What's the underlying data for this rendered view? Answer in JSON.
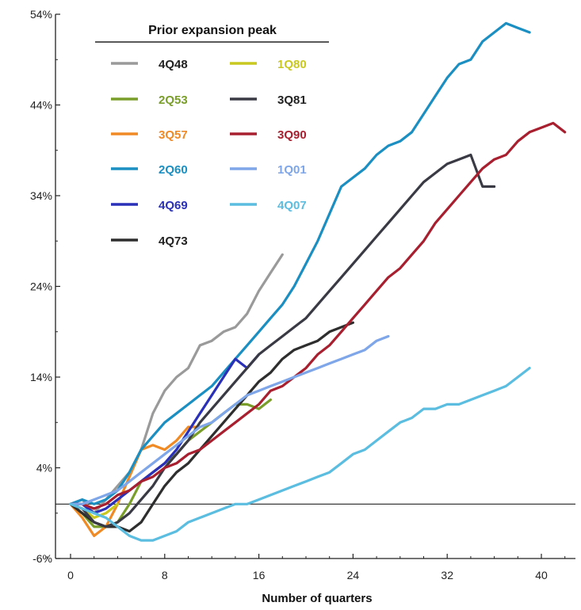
{
  "chart_data": {
    "type": "line",
    "title": "",
    "xlabel": "Number of quarters",
    "ylabel": "",
    "xlim": [
      -2,
      43
    ],
    "ylim": [
      -6,
      54
    ],
    "xticks": [
      0,
      8,
      16,
      24,
      32,
      40
    ],
    "yticks": [
      -6,
      4,
      14,
      24,
      34,
      44,
      54
    ],
    "ytick_labels": [
      "-6%",
      "4%",
      "14%",
      "24%",
      "34%",
      "44%",
      "54%"
    ],
    "xtick_labels": [
      "0",
      "8",
      "16",
      "24",
      "32",
      "40"
    ],
    "zero_line": true,
    "grid": false,
    "legend": {
      "title": "Prior expansion peak",
      "placement": "top-left"
    },
    "series": [
      {
        "name": "4Q48",
        "color": "#9a9a9a",
        "x": [
          0,
          1,
          2,
          3,
          4,
          5,
          6,
          7,
          8,
          9,
          10,
          11,
          12,
          13,
          14,
          15,
          16,
          17,
          18
        ],
        "y": [
          0,
          0.5,
          -1,
          0.5,
          2,
          3.5,
          6,
          10,
          12.5,
          14,
          15,
          17.5,
          18,
          19,
          19.5,
          21,
          23.5,
          25.5,
          27.5
        ]
      },
      {
        "name": "2Q53",
        "color": "#7a9e2a",
        "x": [
          0,
          1,
          2,
          3,
          4,
          5,
          6,
          7,
          8,
          9,
          10,
          11,
          12,
          13,
          14,
          15,
          16,
          17
        ],
        "y": [
          0,
          -1,
          -2.5,
          -2.5,
          -2,
          0,
          2.5,
          3.5,
          4.5,
          5.5,
          7,
          8,
          9,
          10,
          11,
          11,
          10.5,
          11.5
        ]
      },
      {
        "name": "3Q57",
        "color": "#f08a24",
        "x": [
          0,
          1,
          2,
          3,
          4,
          5,
          6,
          7,
          8,
          9,
          10,
          11
        ],
        "y": [
          0,
          -1.5,
          -3.5,
          -2.5,
          0,
          3,
          6,
          6.5,
          6,
          7,
          8.5,
          8.5
        ]
      },
      {
        "name": "2Q60",
        "color": "#1b8fc2",
        "x": [
          0,
          1,
          2,
          3,
          4,
          5,
          6,
          7,
          8,
          9,
          10,
          11,
          12,
          13,
          14,
          15,
          16,
          17,
          18,
          19,
          20,
          21,
          22,
          23,
          24,
          25,
          26,
          27,
          28,
          29,
          30,
          31,
          32,
          33,
          34,
          35,
          36,
          37,
          38,
          39
        ],
        "y": [
          0,
          0.5,
          0,
          0.5,
          1.5,
          3.5,
          6,
          7.5,
          9,
          10,
          11,
          12,
          13,
          14.5,
          16,
          17.5,
          19,
          20.5,
          22,
          24,
          26.5,
          29,
          32,
          35,
          36,
          37,
          38.5,
          39.5,
          40,
          41,
          43,
          45,
          47,
          48.5,
          49,
          51,
          52,
          53,
          52.5,
          52
        ]
      },
      {
        "name": "4Q69",
        "color": "#2a30b8",
        "x": [
          0,
          1,
          2,
          3,
          4,
          5,
          6,
          7,
          8,
          9,
          10,
          11,
          12,
          13,
          14,
          15,
          16
        ],
        "y": [
          0,
          0,
          -1,
          -0.5,
          0.5,
          1.5,
          2.5,
          3.5,
          4.5,
          6,
          8,
          10,
          12,
          14,
          16,
          15,
          16.5
        ]
      },
      {
        "name": "4Q73",
        "color": "#2e2e2e",
        "x": [
          0,
          1,
          2,
          3,
          4,
          5,
          6,
          7,
          8,
          9,
          10,
          11,
          12,
          13,
          14,
          15,
          16,
          17,
          18,
          19,
          20,
          21,
          22,
          23,
          24
        ],
        "y": [
          0,
          -1,
          -2,
          -2.5,
          -2.5,
          -3,
          -2,
          0,
          2,
          3.5,
          4.5,
          6,
          7.5,
          9,
          10.5,
          12,
          13.5,
          14.5,
          16,
          17,
          17.5,
          18,
          19,
          19.5,
          20
        ]
      },
      {
        "name": "1Q80",
        "color": "#c8c820",
        "x": [
          0,
          1,
          2,
          3,
          4
        ],
        "y": [
          0,
          -0.5,
          -1.5,
          -1,
          0
        ]
      },
      {
        "name": "3Q81",
        "color": "#3a3a45",
        "x": [
          0,
          1,
          2,
          3,
          4,
          5,
          6,
          7,
          8,
          9,
          10,
          11,
          12,
          13,
          14,
          15,
          16,
          17,
          18,
          19,
          20,
          21,
          22,
          23,
          24,
          25,
          26,
          27,
          28,
          29,
          30,
          31,
          32,
          33,
          34,
          35,
          36
        ],
        "y": [
          0,
          -0.5,
          -2,
          -2.5,
          -2,
          -1,
          0.5,
          2,
          4,
          5.5,
          7,
          9,
          10.5,
          12,
          13.5,
          15,
          16.5,
          17.5,
          18.5,
          19.5,
          20.5,
          22,
          23.5,
          25,
          26.5,
          28,
          29.5,
          31,
          32.5,
          34,
          35.5,
          36.5,
          37.5,
          38,
          38.5,
          35,
          35
        ]
      },
      {
        "name": "3Q90",
        "color": "#a82030",
        "x": [
          0,
          1,
          2,
          3,
          4,
          5,
          6,
          7,
          8,
          9,
          10,
          11,
          12,
          13,
          14,
          15,
          16,
          17,
          18,
          19,
          20,
          21,
          22,
          23,
          24,
          25,
          26,
          27,
          28,
          29,
          30,
          31,
          32,
          33,
          34,
          35,
          36,
          37,
          38,
          39,
          40,
          41,
          42
        ],
        "y": [
          0,
          0,
          -0.5,
          0,
          1,
          1.5,
          2.5,
          3,
          4,
          4.5,
          5.5,
          6,
          7,
          8,
          9,
          10,
          11,
          12.5,
          13,
          14,
          15,
          16.5,
          17.5,
          19,
          20.5,
          22,
          23.5,
          25,
          26,
          27.5,
          29,
          31,
          32.5,
          34,
          35.5,
          37,
          38,
          38.5,
          40,
          41,
          41.5,
          42,
          41
        ]
      },
      {
        "name": "1Q01",
        "color": "#7ea6e8",
        "x": [
          0,
          1,
          2,
          3,
          4,
          5,
          6,
          7,
          8,
          9,
          10,
          11,
          12,
          13,
          14,
          15,
          16,
          17,
          18,
          19,
          20,
          21,
          22,
          23,
          24,
          25,
          26,
          27
        ],
        "y": [
          0,
          0,
          0.5,
          1,
          1.5,
          2.5,
          3.5,
          4.5,
          5.5,
          6.5,
          7.5,
          8.5,
          9,
          10,
          11,
          12,
          12.5,
          13,
          13.5,
          14,
          14.5,
          15,
          15.5,
          16,
          16.5,
          17,
          18,
          18.5
        ]
      },
      {
        "name": "4Q07",
        "color": "#5bbde0",
        "x": [
          0,
          1,
          2,
          3,
          4,
          5,
          6,
          7,
          8,
          9,
          10,
          11,
          12,
          13,
          14,
          15,
          16,
          17,
          18,
          19,
          20,
          21,
          22,
          23,
          24,
          25,
          26,
          27,
          28,
          29,
          30,
          31,
          32,
          33,
          34,
          35,
          36,
          37,
          38,
          39
        ],
        "y": [
          0,
          -0.5,
          -1,
          -1.5,
          -2.5,
          -3.5,
          -4,
          -4,
          -3.5,
          -3,
          -2,
          -1.5,
          -1,
          -0.5,
          0,
          0,
          0.5,
          1,
          1.5,
          2,
          2.5,
          3,
          3.5,
          4.5,
          5.5,
          6,
          7,
          8,
          9,
          9.5,
          10.5,
          10.5,
          11,
          11,
          11.5,
          12,
          12.5,
          13,
          14,
          15
        ]
      }
    ]
  }
}
